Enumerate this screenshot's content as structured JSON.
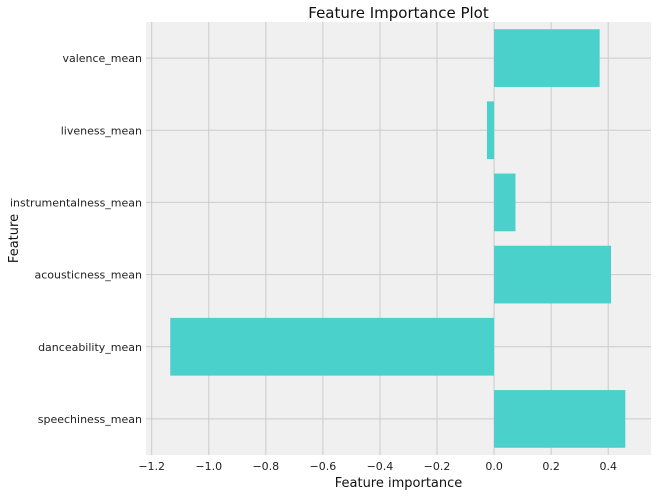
{
  "chart_data": {
    "type": "bar",
    "orientation": "horizontal",
    "title": "Feature Importance Plot",
    "xlabel": "Feature importance",
    "ylabel": "Feature",
    "categories": [
      "speechiness_mean",
      "danceability_mean",
      "acousticness_mean",
      "instrumentalness_mean",
      "liveness_mean",
      "valence_mean"
    ],
    "values": [
      0.46,
      -1.135,
      0.41,
      0.075,
      -0.025,
      0.37
    ],
    "xlim": [
      -1.22,
      0.55
    ],
    "xticks": [
      -1.2,
      -1.0,
      -0.8,
      -0.6,
      -0.4,
      -0.2,
      0.0,
      0.2,
      0.4
    ],
    "xtick_labels": [
      "−1.2",
      "−1.0",
      "−0.8",
      "−0.6",
      "−0.4",
      "−0.2",
      "0.0",
      "0.2",
      "0.4"
    ],
    "grid": true,
    "bar_color": "#4ad1cc",
    "background_color": "#f0f0f0",
    "grid_color": "#cbcbcb"
  }
}
